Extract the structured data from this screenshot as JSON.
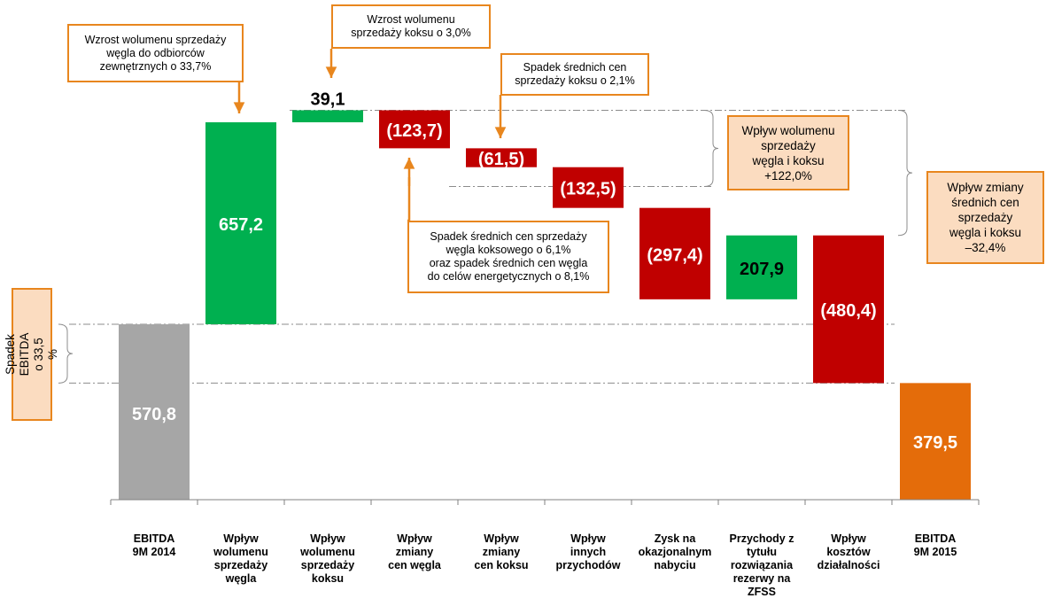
{
  "chart_data": {
    "type": "waterfall",
    "categories": [
      "EBITDA\n9M 2014",
      "Wpływ\nwolumenu\nsprzedaży\nwęgla",
      "Wpływ\nwolumenu\nsprzedaży\nkoksu",
      "Wpływ\nzmiany\ncen węgla",
      "Wpływ\nzmiany\ncen koksu",
      "Wpływ\ninnych\nprzychodów",
      "Zysk na\nokazjonalnym\nnabyciu",
      "Przychody z\ntytułu\nrozwiązania\nrezerwy na\nZFSS",
      "Wpływ\nkosztów\ndziałalności",
      "EBITDA\n9M 2015"
    ],
    "values": [
      570.8,
      657.2,
      39.1,
      -123.7,
      -61.5,
      -132.5,
      -297.4,
      207.9,
      -480.4,
      379.5
    ],
    "labels": [
      "570,8",
      "657,2",
      "39,1",
      "(123,7)",
      "(61,5)",
      "(132,5)",
      "(297,4)",
      "207,9",
      "(480,4)",
      "379,5"
    ],
    "kinds": [
      "total",
      "increase",
      "increase",
      "decrease",
      "decrease",
      "decrease",
      "decrease",
      "increase",
      "decrease",
      "total"
    ],
    "colors": {
      "start_total": "#A6A6A6",
      "increase": "#00B050",
      "decrease": "#C00000",
      "end_total": "#E46C0A",
      "callout_border": "#E8861E",
      "callout_fill": "#FBDCC0"
    }
  },
  "callouts": {
    "coal_volume": "Wzrost wolumenu sprzedaży\nwęgla do odbiorców\nzewnętrznych o 33,7%",
    "coke_volume": "Wzrost wolumenu\nsprzedaży koksu o 3,0%",
    "coke_price": "Spadek średnich cen\nsprzedaży koksu o 2,1%",
    "coal_price": "Spadek  średnich cen sprzedaży\nwęgla koksowego o 6,1%\noraz spadek średnich cen węgla\ndo celów energetycznych o 8,1%",
    "volume_effect": "Wpływ wolumenu\nsprzedaży\nwęgla i koksu\n+122,0%",
    "price_effect": "Wpływ zmiany\nśrednich cen\nsprzedaży\nwęgla i koksu\n–32,4%",
    "ebitda_drop": "Spadek  EBITDA\no 33,5 %"
  }
}
